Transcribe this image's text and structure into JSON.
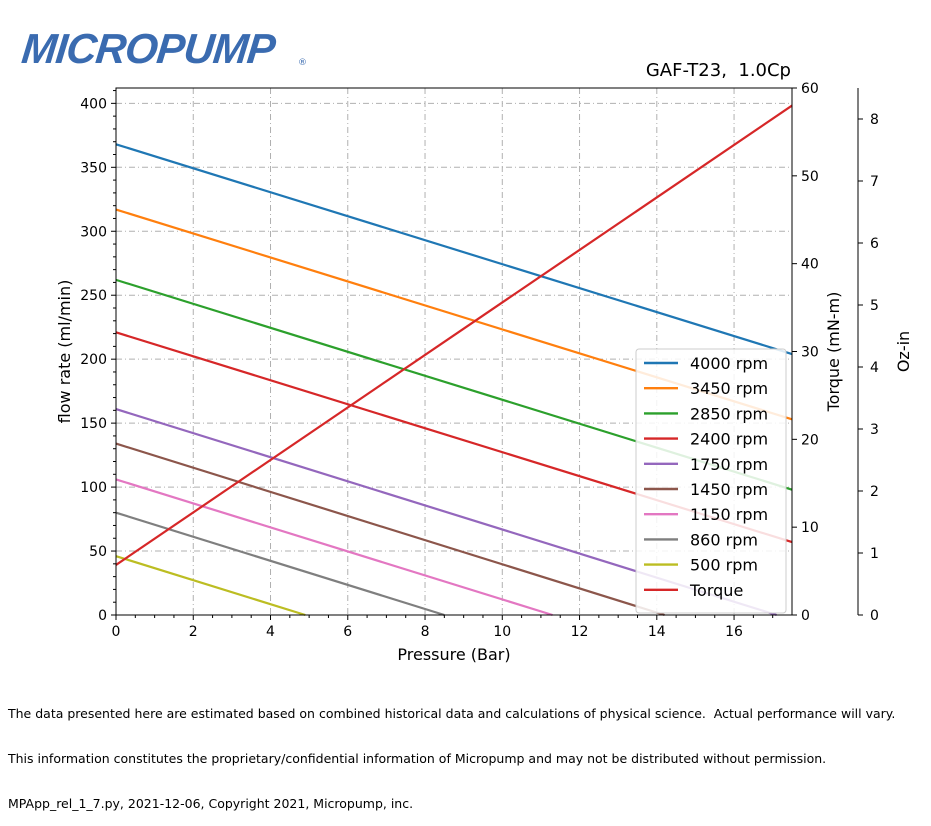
{
  "logo": {
    "text": "MICROPUMP",
    "registered": "®"
  },
  "footer": {
    "line1": "The data presented here are estimated based on combined historical data and calculations of physical science.  Actual performance will vary.",
    "line2": "This information constitutes the proprietary/confidential information of Micropump and may not be distributed without permission.",
    "line3": "MPApp_rel_1_7.py, 2021-12-06, Copyright 2021, Micropump, inc."
  },
  "chart_data": {
    "type": "line",
    "title": "GAF-T23,  1.0Cp",
    "xlabel": "Pressure (Bar)",
    "ylabel": "flow rate (ml/min)",
    "y2label": "Torque (mN-m)",
    "y3label": "Oz-in",
    "xlim": [
      0,
      17.5
    ],
    "ylim": [
      0,
      412
    ],
    "y2lim": [
      0,
      60
    ],
    "y3lim": [
      0,
      8.5
    ],
    "xticks": [
      0,
      2,
      4,
      6,
      8,
      10,
      12,
      14,
      16
    ],
    "yticks": [
      0,
      50,
      100,
      150,
      200,
      250,
      300,
      350,
      400
    ],
    "y2ticks": [
      0,
      10,
      20,
      30,
      40,
      50,
      60
    ],
    "y3ticks": [
      0,
      1,
      2,
      3,
      4,
      5,
      6,
      7,
      8
    ],
    "grid": true,
    "legend_position": "lower-right",
    "series": [
      {
        "name": "4000 rpm",
        "color": "#1f77b4",
        "axis": "flow",
        "x": [
          0,
          17.5
        ],
        "y": [
          368,
          204
        ]
      },
      {
        "name": "3450 rpm",
        "color": "#ff7f0e",
        "axis": "flow",
        "x": [
          0,
          17.5
        ],
        "y": [
          317,
          153
        ]
      },
      {
        "name": "2850 rpm",
        "color": "#2ca02c",
        "axis": "flow",
        "x": [
          0,
          17.5
        ],
        "y": [
          262,
          98
        ]
      },
      {
        "name": "2400 rpm",
        "color": "#d62728",
        "axis": "flow",
        "x": [
          0,
          17.5
        ],
        "y": [
          221,
          57
        ]
      },
      {
        "name": "1750 rpm",
        "color": "#9467bd",
        "axis": "flow",
        "x": [
          0,
          17.1
        ],
        "y": [
          161,
          0
        ]
      },
      {
        "name": "1450 rpm",
        "color": "#8c564b",
        "axis": "flow",
        "x": [
          0,
          14.2
        ],
        "y": [
          134,
          0
        ]
      },
      {
        "name": "1150 rpm",
        "color": "#e377c2",
        "axis": "flow",
        "x": [
          0,
          11.3
        ],
        "y": [
          106,
          0
        ]
      },
      {
        "name": "860 rpm",
        "color": "#7f7f7f",
        "axis": "flow",
        "x": [
          0,
          8.5
        ],
        "y": [
          80,
          0
        ]
      },
      {
        "name": "500 rpm",
        "color": "#bcbd22",
        "axis": "flow",
        "x": [
          0,
          4.9
        ],
        "y": [
          46,
          0
        ]
      },
      {
        "name": "Torque",
        "color": "#d62728",
        "axis": "torque",
        "x": [
          0,
          17.5
        ],
        "y": [
          5.7,
          58
        ]
      }
    ]
  }
}
